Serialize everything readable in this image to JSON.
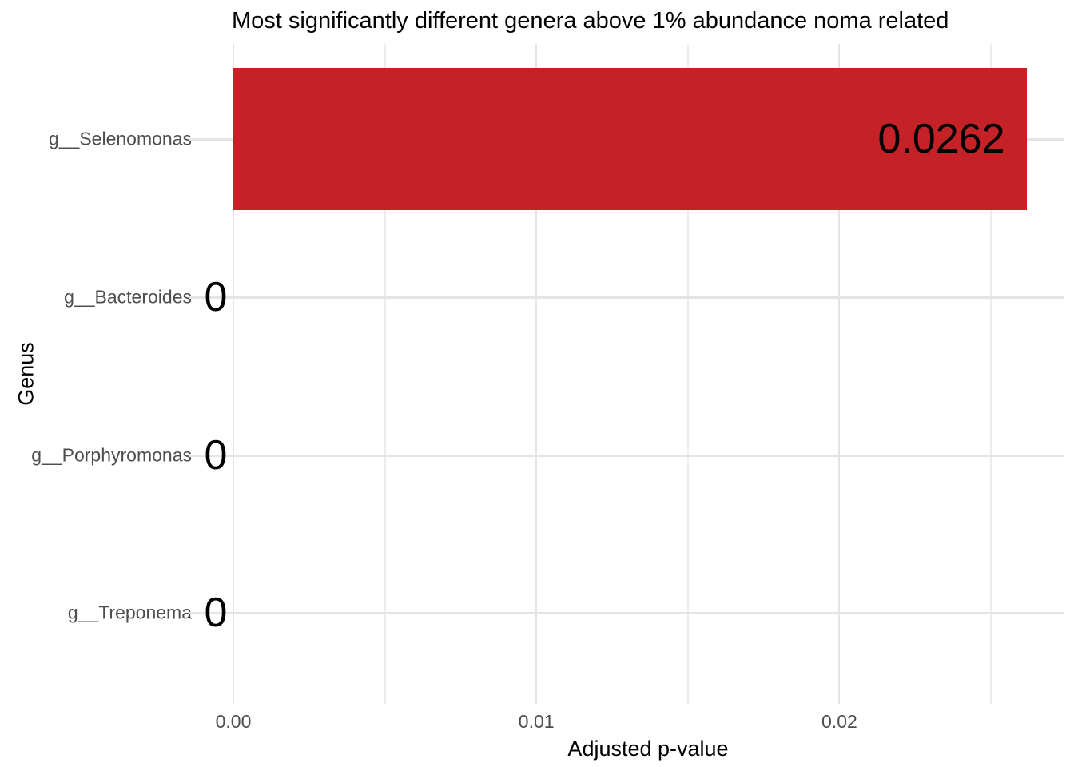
{
  "chart_data": {
    "type": "bar",
    "orientation": "horizontal",
    "title": "Most significantly different genera above 1% abundance noma related",
    "xlabel": "Adjusted p-value",
    "ylabel": "Genus",
    "categories": [
      "g__Selenomonas",
      "g__Bacteroides",
      "g__Porphyromonas",
      "g__Treponema"
    ],
    "values": [
      0.0262,
      0,
      0,
      0
    ],
    "value_labels": [
      "0.0262",
      "0",
      "0",
      "0"
    ],
    "xlim": [
      0,
      0.0274
    ],
    "x_major_ticks": [
      0,
      0.01,
      0.02
    ],
    "x_tick_labels": [
      "0.00",
      "0.01",
      "0.02"
    ],
    "x_minor_ticks": [
      0.005,
      0.015,
      0.025
    ],
    "grid": true,
    "legend": false,
    "colors": {
      "bar": "#C42226",
      "grid_major": "#E4E4E4",
      "grid_minor": "#EDEDED",
      "axis_text": "#4D4D4D",
      "title_text": "#000000",
      "background": "#FFFFFF"
    }
  }
}
